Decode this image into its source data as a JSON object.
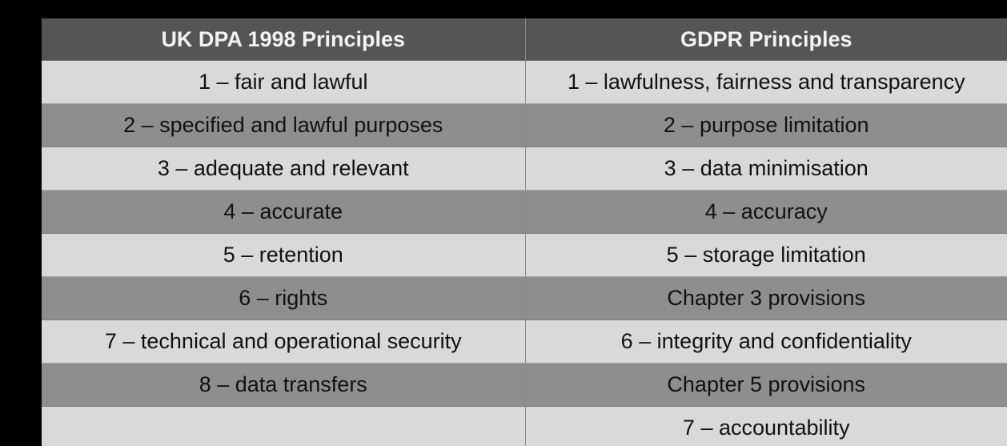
{
  "table": {
    "headers": [
      "UK DPA 1998 Principles",
      "GDPR Principles"
    ],
    "rows": [
      [
        "1 – fair and lawful",
        "1 – lawfulness, fairness and transparency"
      ],
      [
        "2 – specified and lawful purposes",
        "2 – purpose limitation"
      ],
      [
        "3 – adequate and relevant",
        "3 – data minimisation"
      ],
      [
        "4 – accurate",
        "4 – accuracy"
      ],
      [
        "5 – retention",
        "5 – storage limitation"
      ],
      [
        "6 – rights",
        "Chapter 3 provisions"
      ],
      [
        "7 – technical and operational security",
        "6 – integrity and confidentiality"
      ],
      [
        "8 – data transfers",
        "Chapter 5 provisions"
      ],
      [
        "",
        "7 – accountability"
      ]
    ]
  },
  "colors": {
    "background": "#000000",
    "header": "#555555",
    "row_light": "#d9d9d9",
    "row_dark": "#8e8e8e"
  }
}
